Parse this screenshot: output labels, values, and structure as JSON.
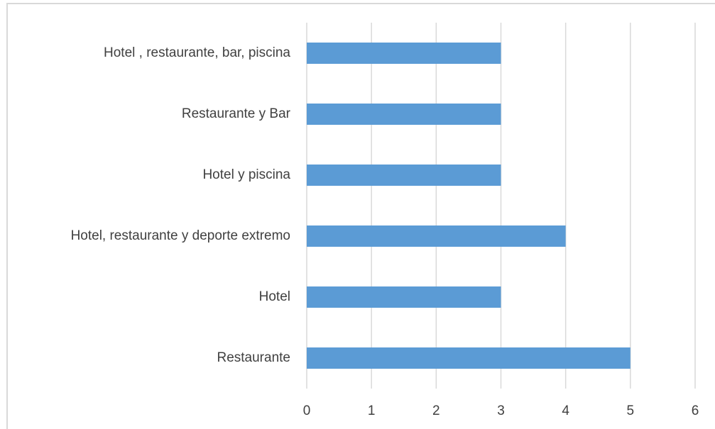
{
  "chart_data": {
    "type": "barh",
    "categories": [
      "Hotel , restaurante, bar, piscina",
      "Restaurante y Bar",
      "Hotel y piscina",
      "Hotel, restaurante y deporte extremo",
      "Hotel",
      "Restaurante"
    ],
    "values": [
      3,
      3,
      3,
      4,
      3,
      5
    ],
    "color": "#5b9bd5",
    "xlim": [
      0,
      6
    ],
    "xticks": [
      0,
      1,
      2,
      3,
      4,
      5,
      6
    ],
    "grid": true
  }
}
